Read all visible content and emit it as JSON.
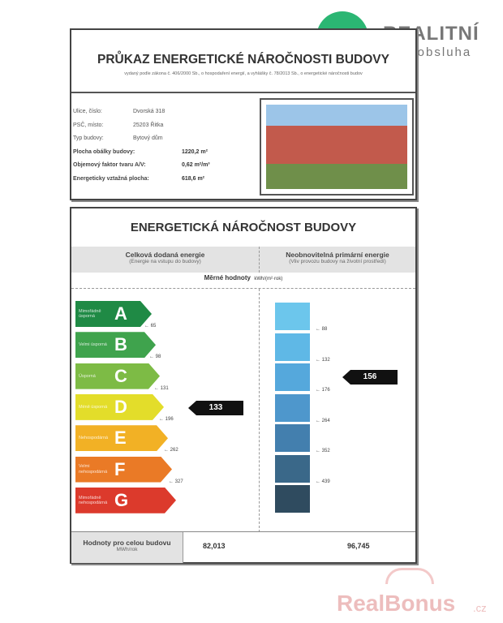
{
  "logo": {
    "brand": "REALITNÍ",
    "tagline": "samoobsluha",
    "color": "#2bb673"
  },
  "watermark": {
    "text": "RealBonus",
    "suffix": ".cz"
  },
  "header": {
    "title": "PRŮKAZ ENERGETICKÉ NÁROČNOSTI BUDOVY",
    "subtitle": "vydaný podle zákona č. 406/2000 Sb., o hospodaření energií, a vyhlášky č. 78/2013 Sb., o energetické náročnosti budov"
  },
  "building": [
    {
      "label": "Ulice, číslo:",
      "value": "Dvorská 318"
    },
    {
      "label": "PSČ, místo:",
      "value": "25203 Řitka"
    },
    {
      "label": "Typ budovy:",
      "value": "Bytový dům"
    },
    {
      "label": "Plocha obálky budovy:",
      "value": "1220,2 m²"
    },
    {
      "label": "Objemový faktor tvaru A/V:",
      "value": "0,62 m²/m³"
    },
    {
      "label": "Energeticky vztažná plocha:",
      "value": "618,6 m²"
    }
  ],
  "section_title": "ENERGETICKÁ NÁROČNOST BUDOVY",
  "columns": {
    "left": {
      "title": "Celková dodaná energie",
      "note": "(Energie na vstupu do budovy)"
    },
    "right": {
      "title": "Neobnovitelná primární energie",
      "note": "(Vliv provozu budovy na životní prostředí)"
    }
  },
  "specific": {
    "label": "Měrné hodnoty",
    "unit": "kWh/(m²·rok)"
  },
  "classes": [
    {
      "letter": "A",
      "label": "Mimořádně úsporná",
      "color": "#1f8a45"
    },
    {
      "letter": "B",
      "label": "Velmi úsporná",
      "color": "#3fa34d"
    },
    {
      "letter": "C",
      "label": "Úsporná",
      "color": "#7dbb45"
    },
    {
      "letter": "D",
      "label": "Méně úsporná",
      "color": "#e3dd2a"
    },
    {
      "letter": "E",
      "label": "Nehospodárná",
      "color": "#f2b125"
    },
    {
      "letter": "F",
      "label": "Velmi nehospodárná",
      "color": "#ea7a26"
    },
    {
      "letter": "G",
      "label": "Mimořádně nehospodárná",
      "color": "#dc3a2c"
    }
  ],
  "left_limits": [
    "65",
    "98",
    "131",
    "196",
    "262",
    "327"
  ],
  "left_value": "133",
  "right_limits": [
    "88",
    "132",
    "176",
    "264",
    "352",
    "439"
  ],
  "right_value": "156",
  "blue_colors": [
    "#6cc6ec",
    "#5fb8e6",
    "#55a8dc",
    "#4e97cc",
    "#437fae",
    "#3a6889",
    "#2f4b5f"
  ],
  "totals": {
    "label": "Hodnoty pro celou budovu",
    "unit": "MWh/rok",
    "left": "82,013",
    "right": "96,745"
  }
}
